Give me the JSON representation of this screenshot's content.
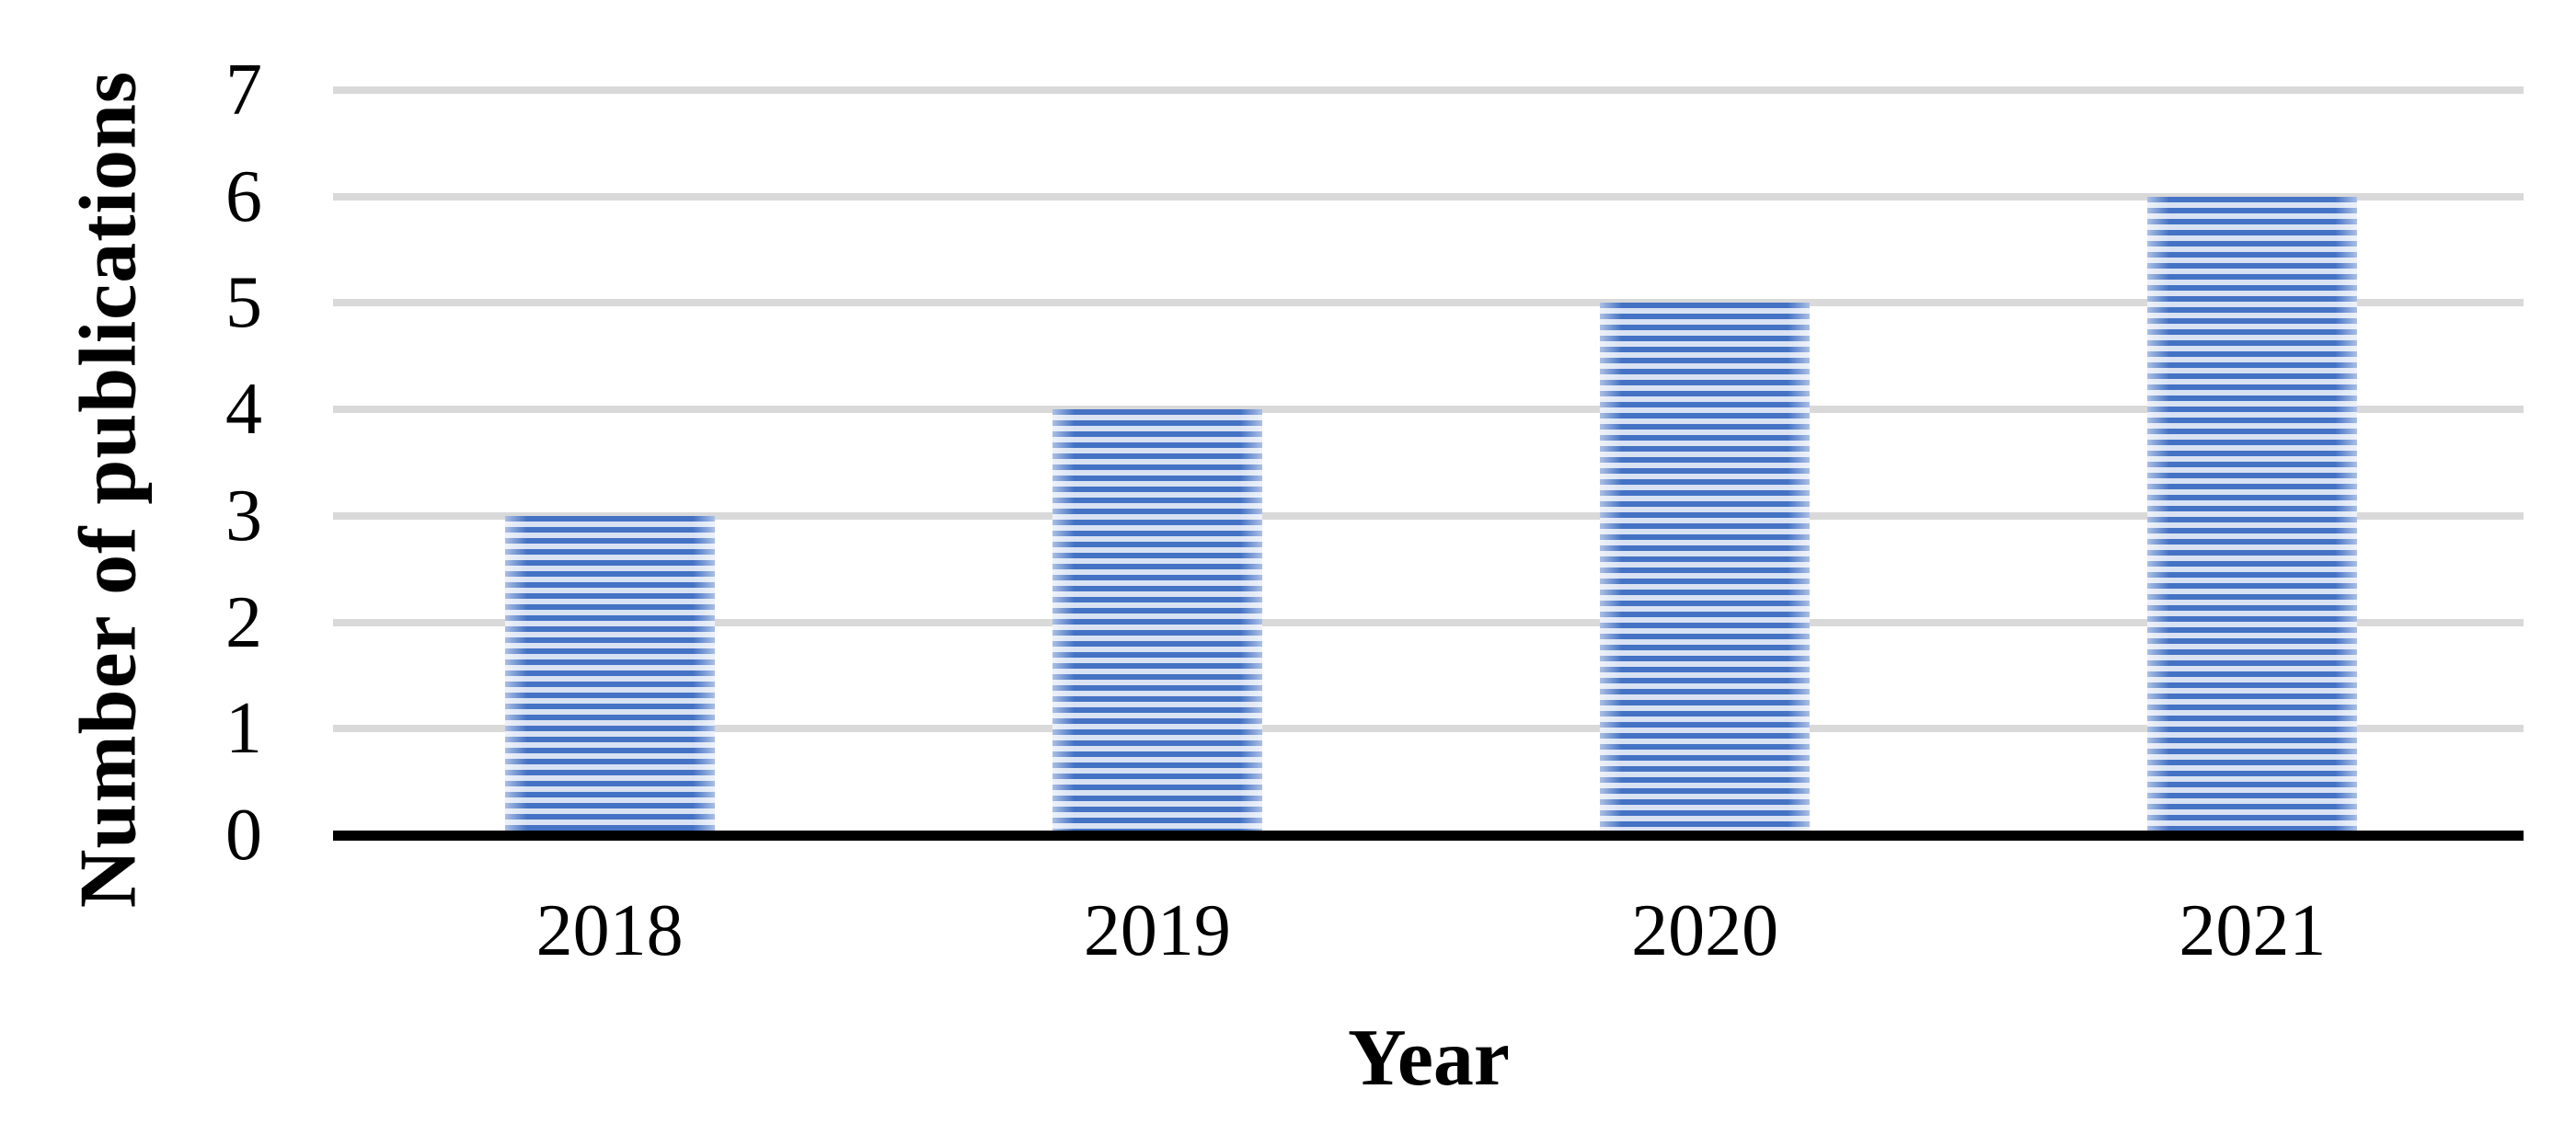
{
  "chart_data": {
    "type": "bar",
    "categories": [
      "2018",
      "2019",
      "2020",
      "2021"
    ],
    "values": [
      3,
      4,
      5,
      6
    ],
    "title": "",
    "xlabel": "Year",
    "ylabel": "Number of publications",
    "ylim": [
      0,
      7
    ],
    "yticks": [
      0,
      1,
      2,
      3,
      4,
      5,
      6,
      7
    ],
    "grid": "horizontal-only",
    "legend_position": "none",
    "colors": {
      "bar_stripe": "#4472c4",
      "bar_background": "#d9e2f3",
      "gridline": "#d9d9d9",
      "axis_line": "#000000",
      "text": "#000000",
      "page_background": "#ffffff"
    },
    "bar_pattern": "light-horizontal-stripes"
  }
}
